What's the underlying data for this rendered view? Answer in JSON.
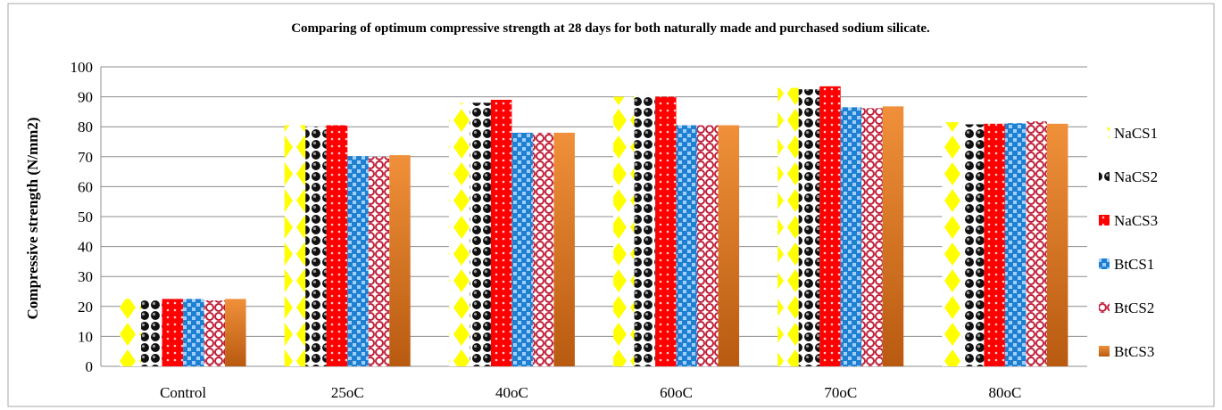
{
  "chart_data": {
    "type": "bar",
    "title": "Comparing of optimum compressive strength at 28 days for both naturally made and purchased sodium silicate.",
    "xlabel": "",
    "ylabel": "Compressive strength (N/mm2)",
    "ylim": [
      0,
      100
    ],
    "yticks": [
      0,
      10,
      20,
      30,
      40,
      50,
      60,
      70,
      80,
      90,
      100
    ],
    "grid": true,
    "legend_position": "right",
    "categories": [
      "Control",
      "25oC",
      "40oC",
      "60oC",
      "70oC",
      "80oC"
    ],
    "series": [
      {
        "name": "NaCS1",
        "color": "#ffff00",
        "pattern": "yellow-diamonds",
        "values": [
          22.5,
          80.5,
          88.0,
          90.0,
          93.0,
          81.5
        ]
      },
      {
        "name": "NaCS2",
        "color": "#000000",
        "pattern": "black-spheres",
        "values": [
          22.0,
          80.0,
          88.0,
          90.5,
          92.5,
          80.8
        ]
      },
      {
        "name": "NaCS3",
        "color": "#ff0000",
        "pattern": "red-dots",
        "values": [
          22.5,
          80.5,
          89.0,
          90.0,
          93.5,
          81.0
        ]
      },
      {
        "name": "BtCS1",
        "color": "#1f7fd0",
        "pattern": "blue-check",
        "values": [
          22.5,
          70.2,
          78.0,
          80.5,
          86.5,
          81.2
        ]
      },
      {
        "name": "BtCS2",
        "color": "#c0203a",
        "pattern": "red-circles",
        "values": [
          22.0,
          70.0,
          78.0,
          80.5,
          86.2,
          81.8
        ]
      },
      {
        "name": "BtCS3",
        "color": "#e07b20",
        "pattern": "orange-gradient",
        "values": [
          22.5,
          70.5,
          78.0,
          80.5,
          86.8,
          81.0
        ]
      }
    ]
  }
}
